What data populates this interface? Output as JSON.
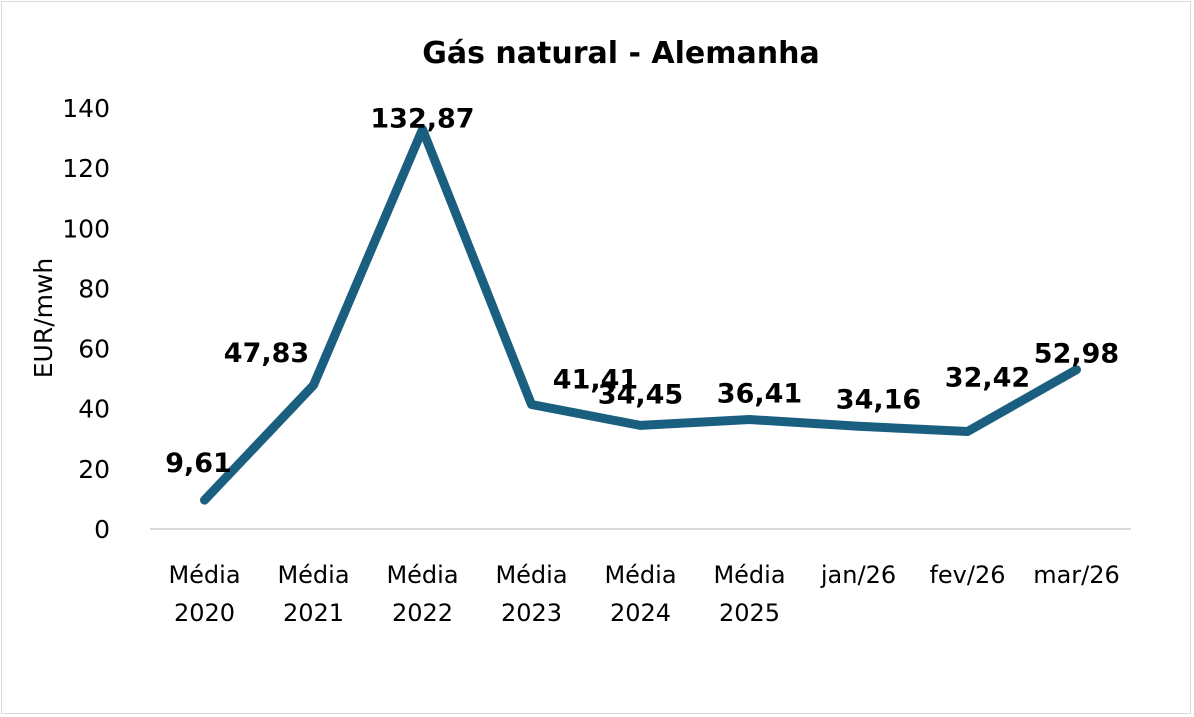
{
  "chart_data": {
    "type": "line",
    "title": "Gás natural - Alemanha",
    "xlabel": "",
    "ylabel": "EUR/mwh",
    "ylim": [
      0,
      140
    ],
    "yticks": [
      "0",
      "20",
      "40",
      "60",
      "80",
      "100",
      "120",
      "140"
    ],
    "grid": false,
    "legend": "none",
    "categories": [
      [
        "Média",
        "2020"
      ],
      [
        "Média",
        "2021"
      ],
      [
        "Média",
        "2022"
      ],
      [
        "Média",
        "2023"
      ],
      [
        "Média",
        "2024"
      ],
      [
        "Média",
        "2025"
      ],
      [
        "jan/26"
      ],
      [
        "fev/26"
      ],
      [
        "mar/26"
      ]
    ],
    "series": [
      {
        "values": [
          9.61,
          47.83,
          132.87,
          41.41,
          34.45,
          36.41,
          34.16,
          32.42,
          52.98
        ],
        "labels": [
          "9,61",
          "47,83",
          "132,87",
          "41,41",
          "34,45",
          "36,41",
          "34,16",
          "32,42",
          "52,98"
        ],
        "color": "#1a5f80"
      }
    ]
  }
}
